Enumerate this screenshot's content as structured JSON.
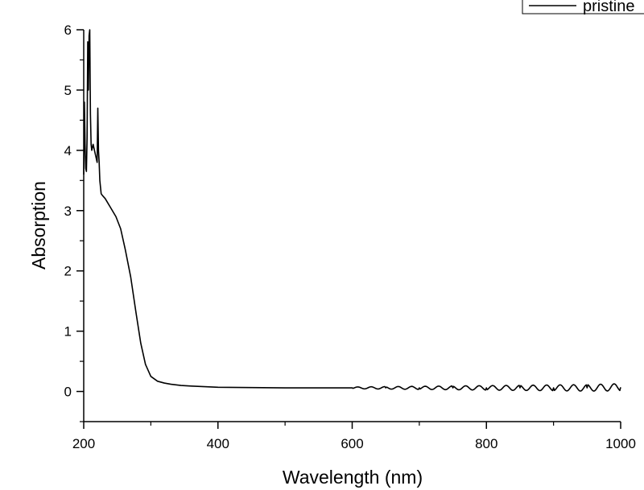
{
  "chart_data": {
    "type": "line",
    "title": "",
    "xlabel": "Wavelength (nm)",
    "ylabel": "Absorption",
    "xlim": [
      200,
      1000
    ],
    "ylim": [
      -0.5,
      6
    ],
    "x_ticks": [
      200,
      400,
      600,
      800,
      1000
    ],
    "y_ticks": [
      0,
      1,
      2,
      3,
      4,
      5,
      6
    ],
    "x_tick_labels": [
      "200",
      "400",
      "600",
      "800",
      "1000"
    ],
    "y_tick_labels": [
      "0",
      "1",
      "2",
      "3",
      "4",
      "5",
      "6"
    ],
    "grid": false,
    "legend_position": "top-right",
    "series": [
      {
        "name": "pristine",
        "color": "#000000",
        "x": [
          200,
          201,
          202,
          203,
          204,
          205,
          206,
          207,
          208,
          209,
          210,
          211,
          212,
          214,
          216,
          218,
          220,
          221,
          222,
          223,
          224,
          226,
          228,
          232,
          240,
          248,
          255,
          262,
          270,
          278,
          285,
          292,
          300,
          310,
          320,
          330,
          345,
          360,
          380,
          400,
          450,
          500,
          550,
          600,
          650,
          700,
          750,
          800,
          850,
          900,
          950,
          1000
        ],
        "y": [
          3.6,
          4.8,
          4.1,
          3.7,
          3.65,
          4.2,
          5.8,
          5.0,
          5.9,
          6.0,
          4.6,
          4.1,
          4.0,
          4.1,
          4.0,
          3.9,
          3.8,
          4.7,
          4.0,
          3.8,
          3.5,
          3.28,
          3.25,
          3.2,
          3.05,
          2.9,
          2.7,
          2.35,
          1.9,
          1.3,
          0.8,
          0.45,
          0.25,
          0.17,
          0.14,
          0.12,
          0.1,
          0.09,
          0.08,
          0.07,
          0.065,
          0.06,
          0.06,
          0.06,
          0.06,
          0.06,
          0.06,
          0.06,
          0.06,
          0.06,
          0.06,
          0.07
        ]
      }
    ]
  }
}
